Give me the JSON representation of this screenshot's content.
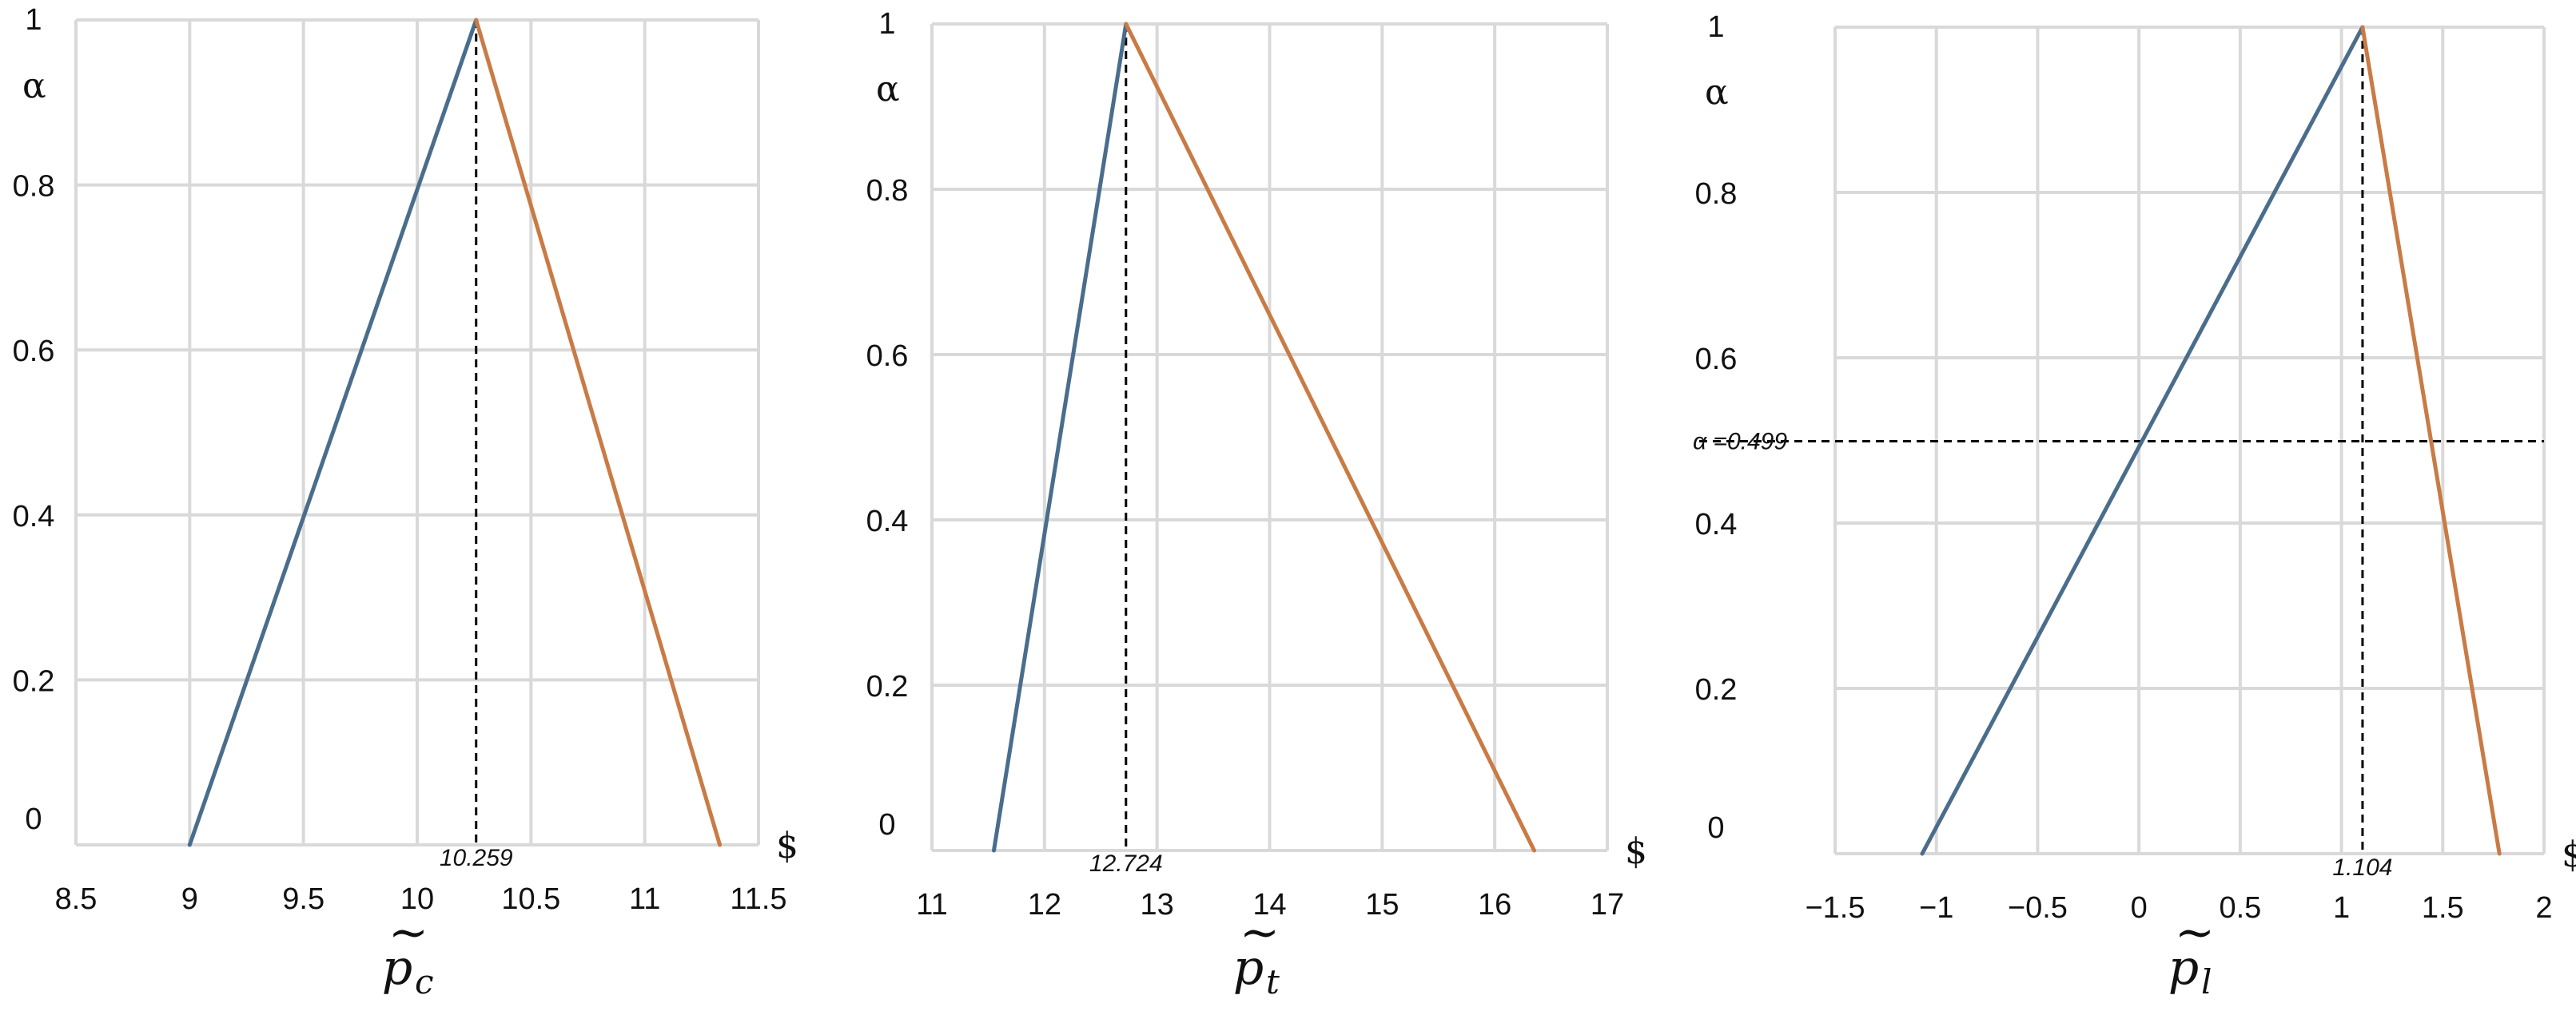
{
  "colors": {
    "left_branch": "#4a6d8c",
    "right_branch": "#c97b45",
    "grid": "#d9d9d9"
  },
  "chart_data": [
    {
      "type": "line",
      "xlabel": {
        "tilde": "~",
        "base": "p",
        "sub": "c"
      },
      "ylabel": "α",
      "x_unit": "$",
      "xlim": [
        8.5,
        11.5
      ],
      "ylim": [
        0,
        1
      ],
      "xticks": [
        "8.5",
        "9",
        "9.5",
        "10",
        "10.5",
        "11",
        "11.5"
      ],
      "yticks": [
        "0",
        "0.2",
        "0.4",
        "0.6",
        "0.8",
        "1"
      ],
      "grid": true,
      "series": [
        {
          "x": [
            9.0,
            10.259
          ],
          "y": [
            0,
            1
          ],
          "color": "#4a6d8c"
        },
        {
          "x": [
            10.259,
            11.33
          ],
          "y": [
            1,
            0
          ],
          "color": "#c97b45"
        }
      ],
      "annotations": [
        {
          "type": "vline",
          "x": 10.259,
          "label": "10.259"
        }
      ]
    },
    {
      "type": "line",
      "xlabel": {
        "tilde": "~",
        "base": "p",
        "sub": "t"
      },
      "ylabel": "α",
      "x_unit": "$",
      "xlim": [
        11,
        17
      ],
      "ylim": [
        0,
        1
      ],
      "xticks": [
        "11",
        "12",
        "13",
        "14",
        "15",
        "16",
        "17"
      ],
      "yticks": [
        "0",
        "0.2",
        "0.4",
        "0.6",
        "0.8",
        "1"
      ],
      "grid": true,
      "series": [
        {
          "x": [
            11.55,
            12.724
          ],
          "y": [
            0,
            1
          ],
          "color": "#4a6d8c"
        },
        {
          "x": [
            12.724,
            16.35
          ],
          "y": [
            1,
            0
          ],
          "color": "#c97b45"
        }
      ],
      "annotations": [
        {
          "type": "vline",
          "x": 12.724,
          "label": "12.724"
        }
      ]
    },
    {
      "type": "line",
      "xlabel": {
        "tilde": "~",
        "base": "p",
        "sub": "l"
      },
      "ylabel": "α",
      "x_unit": "$",
      "xlim": [
        -1.5,
        2
      ],
      "ylim": [
        0,
        1
      ],
      "xticks": [
        "−1.5",
        "−1",
        "−0.5",
        "0",
        "0.5",
        "1",
        "1.5",
        "2"
      ],
      "yticks": [
        "0",
        "0.2",
        "0.4",
        "0.6",
        "0.8",
        "1"
      ],
      "grid": true,
      "series": [
        {
          "x": [
            -1.07,
            1.104
          ],
          "y": [
            0,
            1
          ],
          "color": "#4a6d8c"
        },
        {
          "x": [
            1.104,
            1.78
          ],
          "y": [
            1,
            0
          ],
          "color": "#c97b45"
        }
      ],
      "annotations": [
        {
          "type": "vline",
          "x": 1.104,
          "label": "1.104"
        },
        {
          "type": "hline",
          "y": 0.499,
          "label": "α =0.499"
        }
      ]
    }
  ]
}
